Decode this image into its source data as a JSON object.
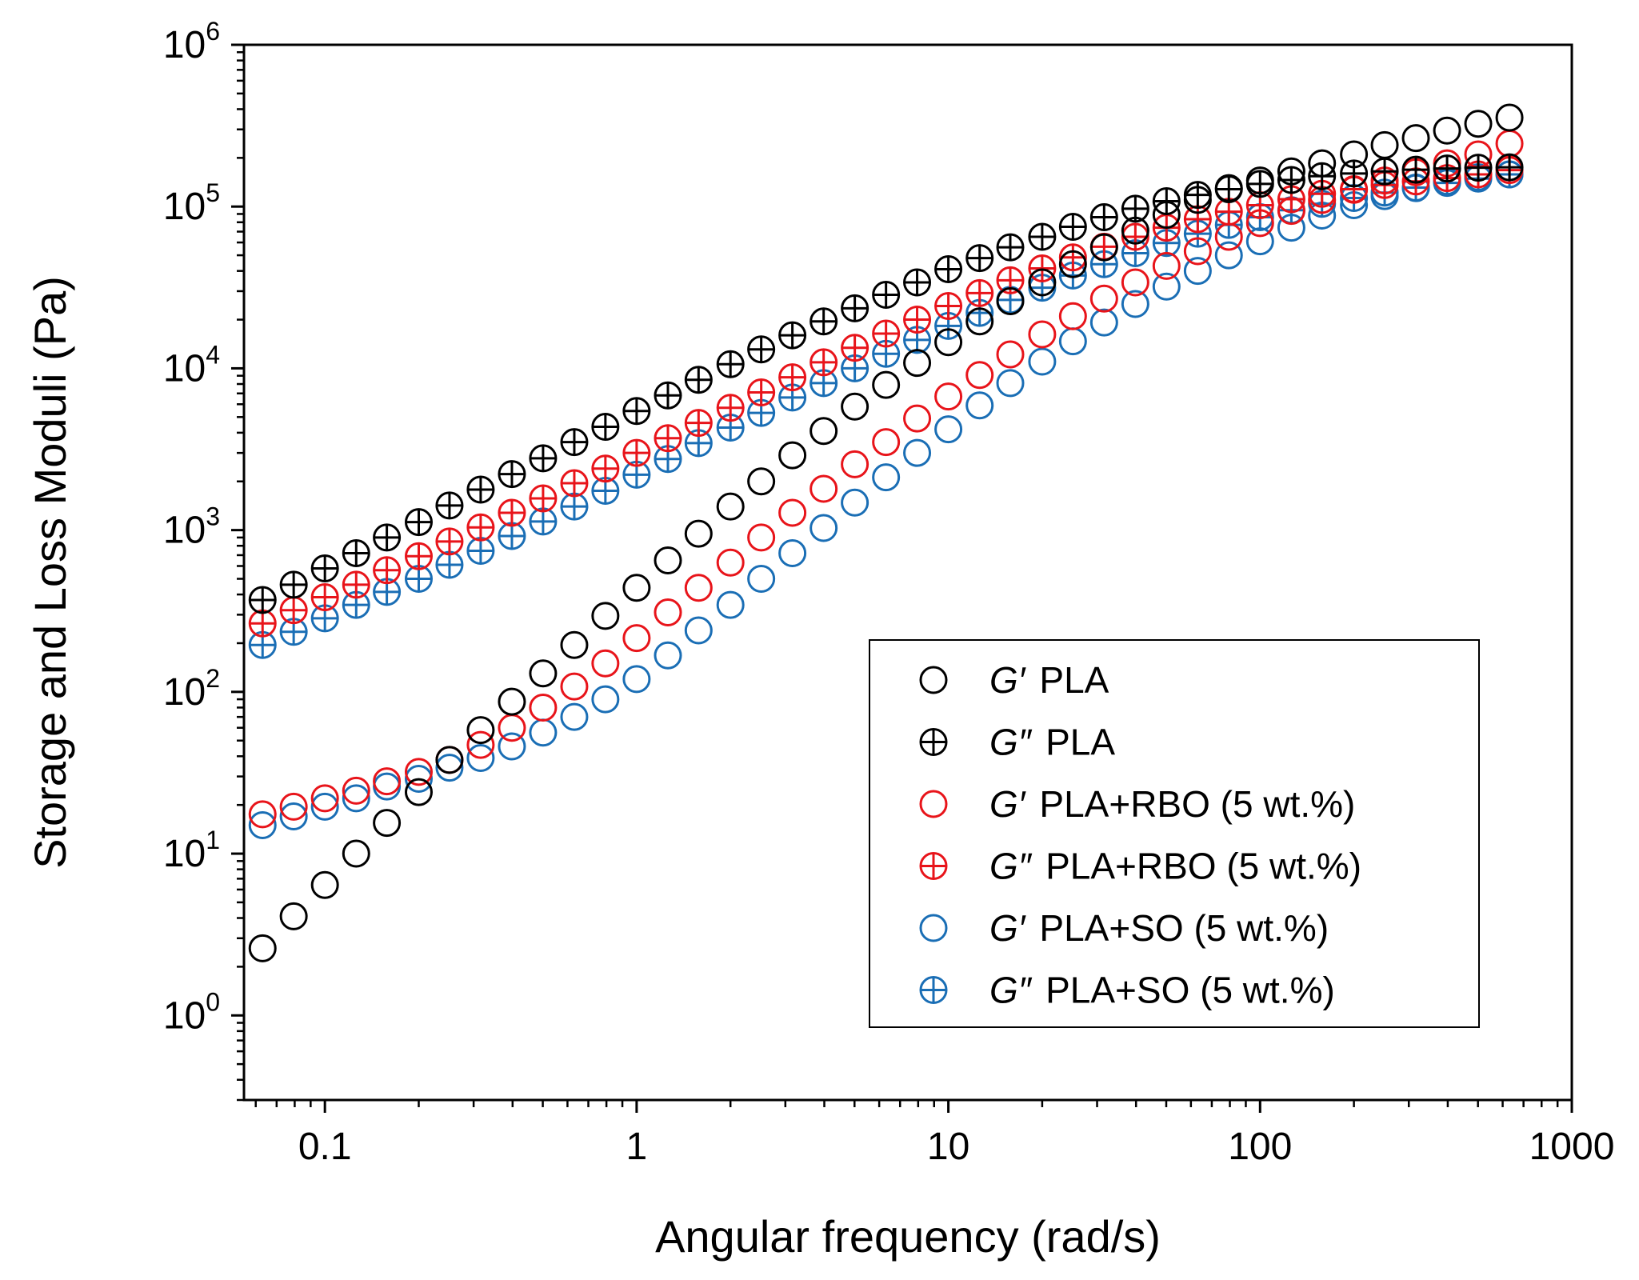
{
  "chart_data": {
    "type": "scatter",
    "title": "",
    "xlabel": "Angular frequency (rad/s)",
    "ylabel": "Storage and Loss Moduli (Pa)",
    "xscale": "log",
    "yscale": "log",
    "xlim": [
      0.055,
      1000
    ],
    "ylim": [
      0.3,
      1000000
    ],
    "x_ticks": [
      {
        "value": 0.1,
        "label": "0.1"
      },
      {
        "value": 1,
        "label": "1"
      },
      {
        "value": 10,
        "label": "10"
      },
      {
        "value": 100,
        "label": "100"
      },
      {
        "value": 1000,
        "label": "1000"
      }
    ],
    "y_ticks": [
      {
        "value": 1,
        "base": "10",
        "exp": "0"
      },
      {
        "value": 10,
        "base": "10",
        "exp": "1"
      },
      {
        "value": 100,
        "base": "10",
        "exp": "2"
      },
      {
        "value": 1000,
        "base": "10",
        "exp": "3"
      },
      {
        "value": 10000,
        "base": "10",
        "exp": "4"
      },
      {
        "value": 100000,
        "base": "10",
        "exp": "5"
      },
      {
        "value": 1000000,
        "base": "10",
        "exp": "6"
      }
    ],
    "legend_position": "bottom-right",
    "x": [
      0.0631,
      0.0794,
      0.1,
      0.126,
      0.158,
      0.2,
      0.251,
      0.316,
      0.398,
      0.501,
      0.631,
      0.794,
      1,
      1.26,
      1.58,
      2,
      2.51,
      3.16,
      3.98,
      5.01,
      6.31,
      7.94,
      10,
      12.6,
      15.8,
      20,
      25.1,
      31.6,
      39.8,
      50.1,
      63.1,
      79.4,
      100,
      126,
      158,
      200,
      251,
      316,
      398,
      501,
      631
    ],
    "series": [
      {
        "name": "PLA",
        "modulus": "G′",
        "color": "#000000",
        "marker": "open-circle",
        "values": [
          2.6,
          4.1,
          6.4,
          10,
          15.5,
          24,
          38,
          58,
          87,
          130,
          195,
          295,
          440,
          650,
          950,
          1400,
          2000,
          2900,
          4100,
          5800,
          7900,
          10800,
          14500,
          19500,
          26000,
          34000,
          44000,
          56000,
          71000,
          89000,
          110000,
          130000,
          145000,
          165000,
          185000,
          210000,
          240000,
          265000,
          295000,
          325000,
          355000
        ]
      },
      {
        "name": "PLA",
        "modulus": "G″",
        "color": "#000000",
        "marker": "crossed-circle",
        "values": [
          370,
          460,
          580,
          720,
          900,
          1120,
          1420,
          1780,
          2220,
          2780,
          3500,
          4350,
          5450,
          6800,
          8500,
          10600,
          13100,
          16000,
          19500,
          23500,
          28500,
          34000,
          41000,
          48000,
          56000,
          65000,
          75000,
          86000,
          97000,
          108000,
          118000,
          128000,
          138000,
          146000,
          154000,
          160000,
          165000,
          169000,
          172000,
          174000,
          175000
        ]
      },
      {
        "name": "PLA+RBO (5 wt.%)",
        "modulus": "G′",
        "color": "#e8141a",
        "marker": "open-circle",
        "values": [
          17.5,
          19.5,
          22,
          24.5,
          28,
          32,
          38,
          47,
          60,
          80,
          108,
          150,
          215,
          310,
          440,
          630,
          900,
          1280,
          1800,
          2550,
          3500,
          4900,
          6700,
          9100,
          12200,
          16200,
          21000,
          27000,
          34000,
          43000,
          53000,
          65000,
          79000,
          94000,
          110000,
          127000,
          145000,
          163000,
          185000,
          210000,
          245000
        ]
      },
      {
        "name": "PLA+RBO (5 wt.%)",
        "modulus": "G″",
        "color": "#e8141a",
        "marker": "crossed-circle",
        "values": [
          265,
          320,
          385,
          460,
          565,
          690,
          850,
          1040,
          1280,
          1570,
          1950,
          2400,
          3000,
          3700,
          4600,
          5700,
          7100,
          8800,
          10900,
          13400,
          16400,
          20000,
          24300,
          29200,
          35000,
          41500,
          48500,
          56500,
          65000,
          74000,
          83500,
          93000,
          102000,
          111000,
          120000,
          128000,
          136000,
          143000,
          150000,
          158000,
          168000
        ]
      },
      {
        "name": "PLA+SO (5 wt.%)",
        "modulus": "G′",
        "color": "#1a6eb5",
        "marker": "open-circle",
        "values": [
          15,
          17,
          19.5,
          22,
          26,
          29,
          34,
          39,
          46,
          56,
          70,
          90,
          120,
          168,
          240,
          345,
          500,
          720,
          1030,
          1480,
          2120,
          3000,
          4200,
          5900,
          8100,
          11000,
          14700,
          19200,
          25000,
          32000,
          40000,
          50000,
          61000,
          74000,
          88000,
          102000,
          116000,
          130000,
          143000,
          152000,
          158000
        ]
      },
      {
        "name": "PLA+SO (5 wt.%)",
        "modulus": "G″",
        "color": "#1a6eb5",
        "marker": "crossed-circle",
        "values": [
          195,
          235,
          285,
          345,
          415,
          500,
          610,
          745,
          920,
          1130,
          1400,
          1750,
          2200,
          2750,
          3450,
          4300,
          5300,
          6600,
          8100,
          10000,
          12300,
          15000,
          18300,
          22000,
          26500,
          31500,
          37500,
          44000,
          51500,
          59500,
          68000,
          77000,
          86000,
          95000,
          104000,
          113000,
          122000,
          131000,
          140000,
          149000,
          158000
        ]
      }
    ]
  }
}
